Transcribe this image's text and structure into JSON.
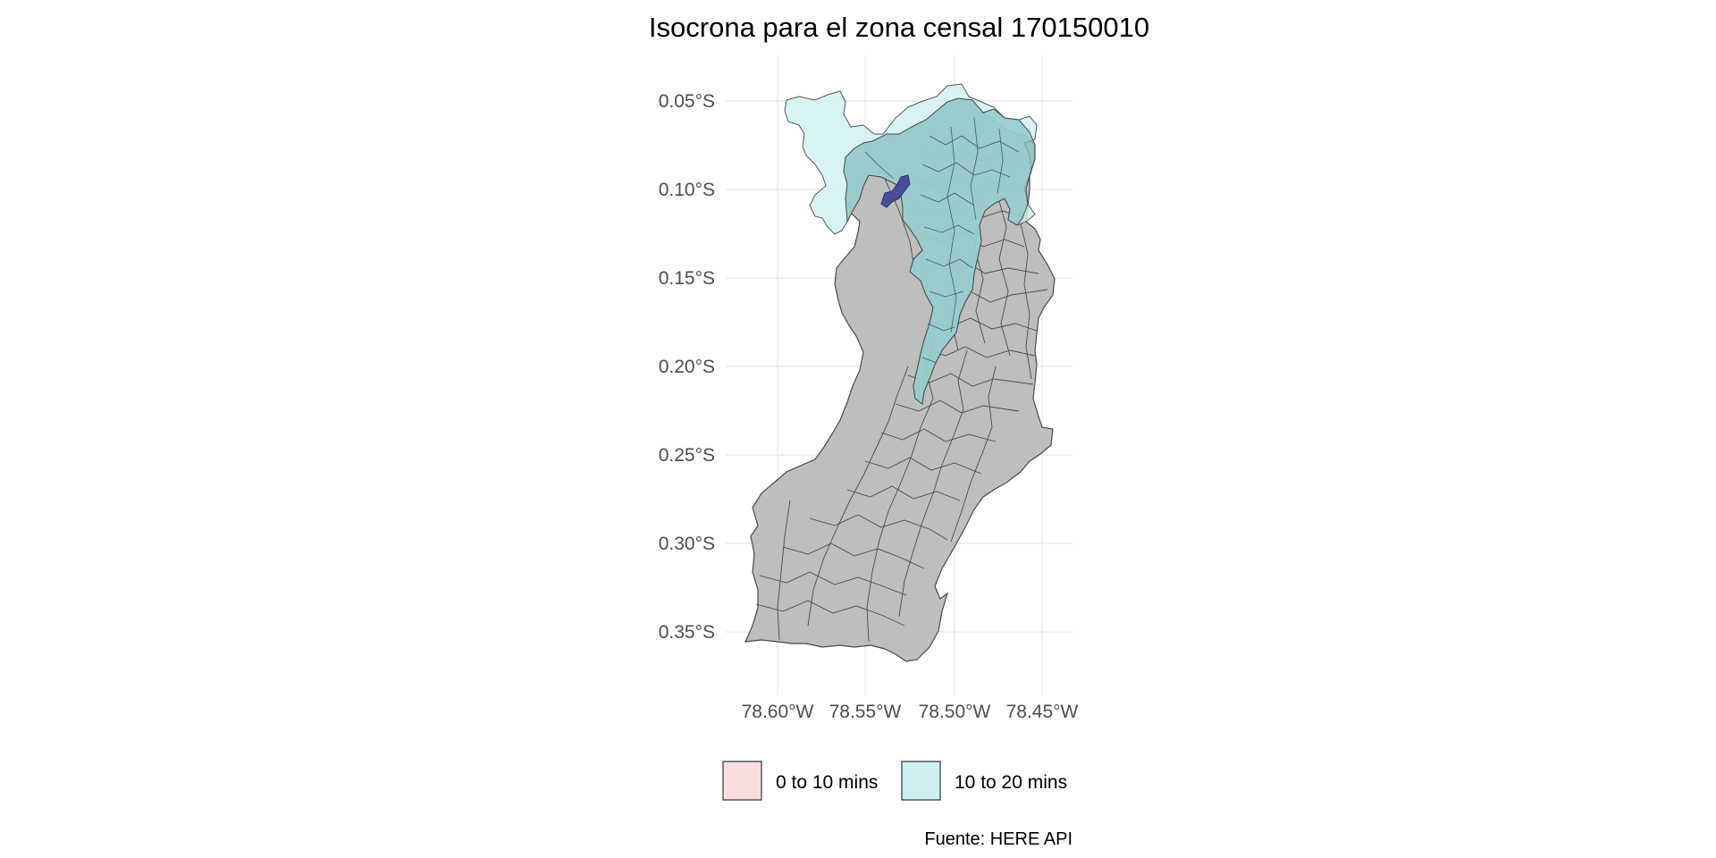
{
  "map": {
    "title": "Isocrona para el zona censal 170150010",
    "caption": "Fuente: HERE API",
    "x_axis": {
      "ticks": [
        -78.6,
        -78.55,
        -78.5,
        -78.45
      ],
      "tick_labels": [
        "78.60°W",
        "78.55°W",
        "78.50°W",
        "78.45°W"
      ],
      "range": [
        -78.624,
        -78.433
      ]
    },
    "y_axis": {
      "ticks": [
        -0.05,
        -0.1,
        -0.15,
        -0.2,
        -0.25,
        -0.3,
        -0.35
      ],
      "tick_labels": [
        "0.05°S",
        "0.10°S",
        "0.15°S",
        "0.20°S",
        "0.25°S",
        "0.30°S",
        "0.35°S"
      ],
      "range": [
        -0.38,
        -0.03
      ]
    },
    "legend": {
      "position": "bottom",
      "items": [
        {
          "label": "0 to 10 mins",
          "color": "#f8dede"
        },
        {
          "label": "10 to 20 mins",
          "color": "#cdeff0"
        }
      ]
    },
    "colors": {
      "zones_fill": "#bebebe",
      "zones_border": "#4a4a4a",
      "isochrone_20": "#cdeff0",
      "isochrone_10": "#f8dede",
      "overlap": "#88c2c5",
      "origin_zone": "#4a4e9a"
    }
  }
}
